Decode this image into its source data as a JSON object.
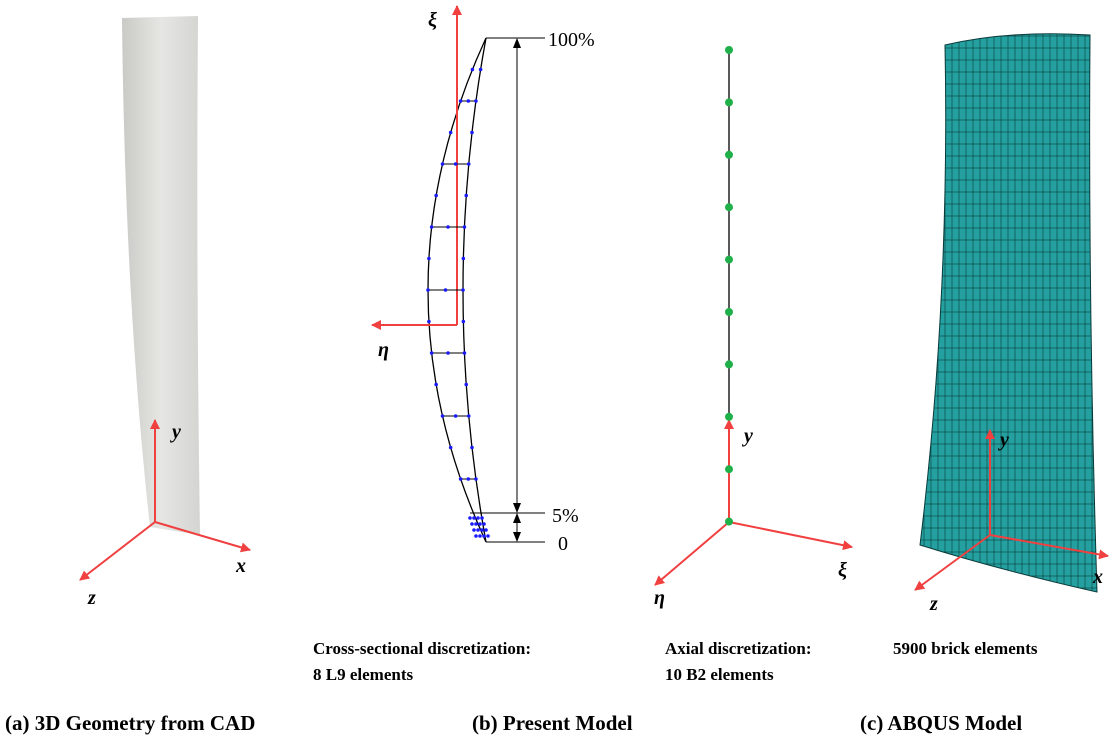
{
  "panels": [
    {
      "caption": "(a) 3D Geometry from CAD",
      "axes": {
        "up": "y",
        "right": "x",
        "left": "z"
      }
    },
    {
      "caption": "(b) Present Model",
      "cross_section": {
        "axes": {
          "up": "ξ",
          "left": "η"
        },
        "dimensions": [
          "100%",
          "5%",
          "0"
        ],
        "note": [
          "Cross-sectional discretization:",
          "8 L9 elements"
        ]
      },
      "axial": {
        "axes": {
          "up": "y",
          "right": "ξ",
          "left": "η"
        },
        "note": [
          "Axial discretization:",
          "10 B2 elements"
        ]
      }
    },
    {
      "caption": "(c) ABQUS Model",
      "axes": {
        "up": "y",
        "right": "x",
        "left": "z"
      },
      "note": [
        "5900 brick elements"
      ]
    }
  ]
}
